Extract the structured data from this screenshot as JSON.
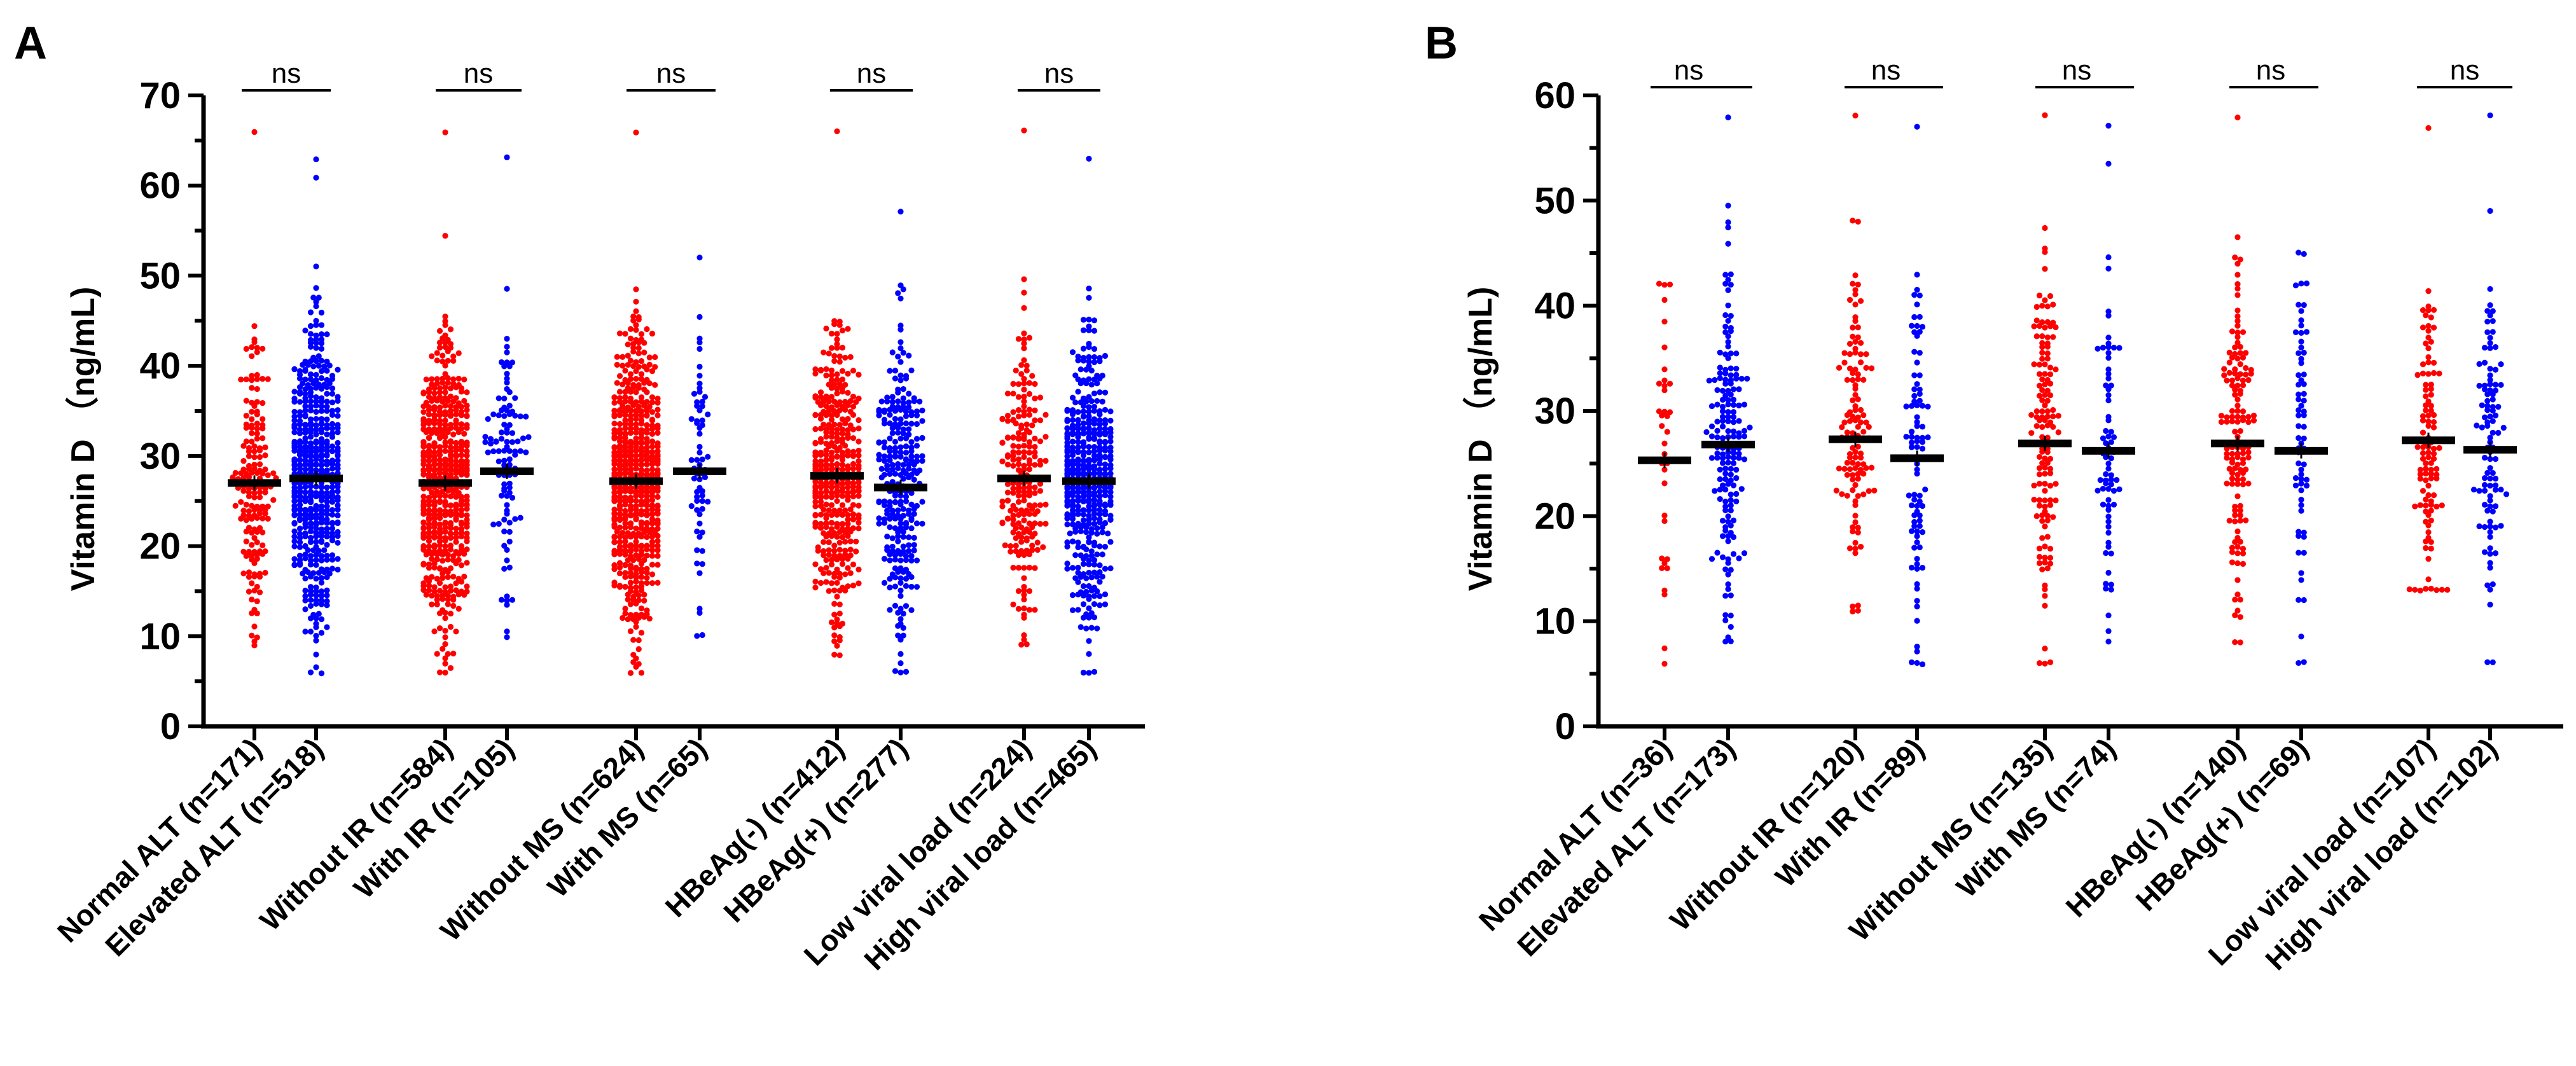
{
  "chart_data": [
    {
      "type": "scatter",
      "panel_label": "A",
      "ylabel": "Vitamin D （ng/mL)",
      "ylim": [
        0,
        70
      ],
      "yticks": [
        "0",
        "10",
        "20",
        "30",
        "40",
        "50",
        "60",
        "70"
      ],
      "categories": [
        "Normal ALT (n=171)",
        "Elevated ALT (n=518)",
        "Without IR (n=584)",
        "With IR (n=105)",
        "Without MS (n=624)",
        "With MS (n=65)",
        "HBeAg(-) (n=412)",
        "HBeAg(+) (n=277)",
        "Low viral load (n=224)",
        "High viral load (n=465)"
      ],
      "series": [
        {
          "name": "Normal ALT (n=171)",
          "color": "#ff0000",
          "n": 171,
          "mean": 27.0,
          "min": 9,
          "max": 66
        },
        {
          "name": "Elevated ALT (n=518)",
          "color": "#0000ff",
          "n": 518,
          "mean": 27.5,
          "min": 6,
          "max": 63
        },
        {
          "name": "Without IR (n=584)",
          "color": "#ff0000",
          "n": 584,
          "mean": 27.0,
          "min": 6,
          "max": 66
        },
        {
          "name": "With IR (n=105)",
          "color": "#0000ff",
          "n": 105,
          "mean": 28.3,
          "min": 10,
          "max": 63
        },
        {
          "name": "Without MS (n=624)",
          "color": "#ff0000",
          "n": 624,
          "mean": 27.2,
          "min": 6,
          "max": 66
        },
        {
          "name": "With MS (n=65)",
          "color": "#0000ff",
          "n": 65,
          "mean": 28.3,
          "min": 10,
          "max": 52
        },
        {
          "name": "HBeAg(-) (n=412)",
          "color": "#ff0000",
          "n": 412,
          "mean": 27.8,
          "min": 8,
          "max": 66
        },
        {
          "name": "HBeAg(+) (n=277)",
          "color": "#0000ff",
          "n": 277,
          "mean": 26.5,
          "min": 6,
          "max": 57
        },
        {
          "name": "Low viral load (n=224)",
          "color": "#ff0000",
          "n": 224,
          "mean": 27.5,
          "min": 9,
          "max": 66
        },
        {
          "name": "High viral load (n=465)",
          "color": "#0000ff",
          "n": 465,
          "mean": 27.2,
          "min": 6,
          "max": 63
        }
      ],
      "comparisons": [
        {
          "pair": [
            0,
            1
          ],
          "label": "ns"
        },
        {
          "pair": [
            2,
            3
          ],
          "label": "ns"
        },
        {
          "pair": [
            4,
            5
          ],
          "label": "ns"
        },
        {
          "pair": [
            6,
            7
          ],
          "label": "ns"
        },
        {
          "pair": [
            8,
            9
          ],
          "label": "ns"
        }
      ]
    },
    {
      "type": "scatter",
      "panel_label": "B",
      "ylabel": "Vitamin D （ng/mL)",
      "ylim": [
        0,
        60
      ],
      "yticks": [
        "0",
        "10",
        "20",
        "30",
        "40",
        "50",
        "60"
      ],
      "categories": [
        "Normal ALT (n=36)",
        "Elevated ALT (n=173)",
        "Without IR (n=120)",
        "With IR (n=89)",
        "Without MS (n=135)",
        "With MS (n=74)",
        "HBeAg(-) (n=140)",
        "HBeAg(+) (n=69)",
        "Low viral load (n=107)",
        "High viral load (n=102)"
      ],
      "series": [
        {
          "name": "Normal ALT (n=36)",
          "color": "#ff0000",
          "n": 36,
          "mean": 25.3,
          "min": 6,
          "max": 42
        },
        {
          "name": "Elevated ALT (n=173)",
          "color": "#0000ff",
          "n": 173,
          "mean": 26.8,
          "min": 8,
          "max": 58
        },
        {
          "name": "Without IR (n=120)",
          "color": "#ff0000",
          "n": 120,
          "mean": 27.3,
          "min": 11,
          "max": 58
        },
        {
          "name": "With IR (n=89)",
          "color": "#0000ff",
          "n": 89,
          "mean": 25.5,
          "min": 6,
          "max": 57
        },
        {
          "name": "Without MS (n=135)",
          "color": "#ff0000",
          "n": 135,
          "mean": 26.9,
          "min": 6,
          "max": 58
        },
        {
          "name": "With MS (n=74)",
          "color": "#0000ff",
          "n": 74,
          "mean": 26.2,
          "min": 8,
          "max": 57
        },
        {
          "name": "HBeAg(-) (n=140)",
          "color": "#ff0000",
          "n": 140,
          "mean": 26.9,
          "min": 8,
          "max": 58
        },
        {
          "name": "HBeAg(+) (n=69)",
          "color": "#0000ff",
          "n": 69,
          "mean": 26.2,
          "min": 6,
          "max": 45
        },
        {
          "name": "Low viral load (n=107)",
          "color": "#ff0000",
          "n": 107,
          "mean": 27.2,
          "min": 13,
          "max": 57
        },
        {
          "name": "High viral load (n=102)",
          "color": "#0000ff",
          "n": 102,
          "mean": 26.3,
          "min": 6,
          "max": 58
        }
      ],
      "comparisons": [
        {
          "pair": [
            0,
            1
          ],
          "label": "ns"
        },
        {
          "pair": [
            2,
            3
          ],
          "label": "ns"
        },
        {
          "pair": [
            4,
            5
          ],
          "label": "ns"
        },
        {
          "pair": [
            6,
            7
          ],
          "label": "ns"
        },
        {
          "pair": [
            8,
            9
          ],
          "label": "ns"
        }
      ]
    }
  ]
}
